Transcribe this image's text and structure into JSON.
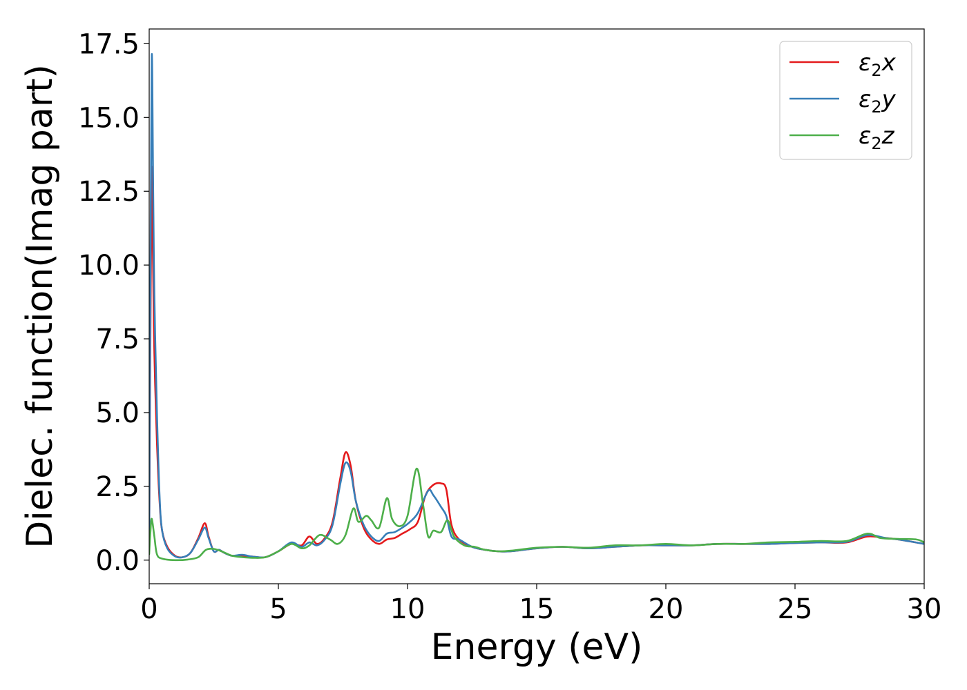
{
  "chart_data": {
    "type": "line",
    "title": "",
    "xlabel": "Energy (eV)",
    "ylabel": "Dielec. function(Imag part)",
    "xlim": [
      0,
      30
    ],
    "ylim": [
      -0.8,
      18.0
    ],
    "xticks": [
      0,
      5,
      10,
      15,
      20,
      25,
      30
    ],
    "xtick_labels": [
      "0",
      "5",
      "10",
      "15",
      "20",
      "25",
      "30"
    ],
    "yticks": [
      0.0,
      2.5,
      5.0,
      7.5,
      10.0,
      12.5,
      15.0,
      17.5
    ],
    "ytick_labels": [
      "0.0",
      "2.5",
      "5.0",
      "7.5",
      "10.0",
      "12.5",
      "15.0",
      "17.5"
    ],
    "grid": false,
    "legend_position": "top-right",
    "series": [
      {
        "name": "ε₂x",
        "legend_base": "ε",
        "legend_sub": "2",
        "legend_suffix": "x",
        "color": "#e41a1c",
        "points": [
          [
            0,
            0.3
          ],
          [
            0.05,
            8.0
          ],
          [
            0.1,
            13.3
          ],
          [
            0.15,
            10.0
          ],
          [
            0.2,
            7.0
          ],
          [
            0.3,
            4.0
          ],
          [
            0.4,
            2.0
          ],
          [
            0.5,
            1.0
          ],
          [
            0.7,
            0.45
          ],
          [
            1.0,
            0.15
          ],
          [
            1.3,
            0.1
          ],
          [
            1.6,
            0.25
          ],
          [
            1.9,
            0.75
          ],
          [
            2.15,
            1.25
          ],
          [
            2.3,
            0.8
          ],
          [
            2.5,
            0.3
          ],
          [
            2.7,
            0.35
          ],
          [
            2.9,
            0.25
          ],
          [
            3.2,
            0.15
          ],
          [
            3.6,
            0.15
          ],
          [
            4.0,
            0.12
          ],
          [
            4.5,
            0.1
          ],
          [
            5.0,
            0.3
          ],
          [
            5.5,
            0.55
          ],
          [
            5.9,
            0.5
          ],
          [
            6.2,
            0.8
          ],
          [
            6.5,
            0.55
          ],
          [
            6.8,
            0.75
          ],
          [
            7.1,
            1.3
          ],
          [
            7.4,
            2.8
          ],
          [
            7.6,
            3.65
          ],
          [
            7.8,
            3.2
          ],
          [
            8.0,
            2.0
          ],
          [
            8.3,
            1.1
          ],
          [
            8.6,
            0.7
          ],
          [
            8.9,
            0.55
          ],
          [
            9.2,
            0.7
          ],
          [
            9.5,
            0.75
          ],
          [
            9.8,
            0.9
          ],
          [
            10.1,
            1.05
          ],
          [
            10.4,
            1.3
          ],
          [
            10.7,
            2.2
          ],
          [
            11.0,
            2.55
          ],
          [
            11.3,
            2.6
          ],
          [
            11.5,
            2.4
          ],
          [
            11.7,
            1.2
          ],
          [
            12.0,
            0.7
          ],
          [
            12.5,
            0.45
          ],
          [
            13.0,
            0.35
          ],
          [
            13.5,
            0.3
          ],
          [
            14.0,
            0.3
          ],
          [
            15.0,
            0.4
          ],
          [
            16.0,
            0.45
          ],
          [
            17.0,
            0.4
          ],
          [
            18.0,
            0.45
          ],
          [
            19.0,
            0.5
          ],
          [
            20.0,
            0.5
          ],
          [
            21.0,
            0.5
          ],
          [
            22.0,
            0.55
          ],
          [
            23.0,
            0.55
          ],
          [
            24.0,
            0.55
          ],
          [
            25.0,
            0.58
          ],
          [
            26.0,
            0.6
          ],
          [
            27.0,
            0.6
          ],
          [
            27.8,
            0.8
          ],
          [
            28.5,
            0.75
          ],
          [
            29.0,
            0.7
          ],
          [
            30.0,
            0.55
          ]
        ]
      },
      {
        "name": "ε₂y",
        "legend_base": "ε",
        "legend_sub": "2",
        "legend_suffix": "y",
        "color": "#377eb8",
        "points": [
          [
            0,
            0.5
          ],
          [
            0.05,
            10.0
          ],
          [
            0.1,
            17.1
          ],
          [
            0.15,
            13.0
          ],
          [
            0.2,
            9.0
          ],
          [
            0.3,
            5.0
          ],
          [
            0.4,
            2.2
          ],
          [
            0.5,
            1.0
          ],
          [
            0.7,
            0.4
          ],
          [
            1.0,
            0.13
          ],
          [
            1.3,
            0.1
          ],
          [
            1.6,
            0.25
          ],
          [
            1.9,
            0.7
          ],
          [
            2.15,
            1.1
          ],
          [
            2.3,
            0.75
          ],
          [
            2.5,
            0.3
          ],
          [
            2.7,
            0.35
          ],
          [
            2.9,
            0.25
          ],
          [
            3.2,
            0.15
          ],
          [
            3.6,
            0.18
          ],
          [
            4.0,
            0.12
          ],
          [
            4.5,
            0.1
          ],
          [
            5.0,
            0.3
          ],
          [
            5.5,
            0.6
          ],
          [
            5.9,
            0.45
          ],
          [
            6.2,
            0.6
          ],
          [
            6.5,
            0.5
          ],
          [
            6.8,
            0.7
          ],
          [
            7.1,
            1.2
          ],
          [
            7.4,
            2.6
          ],
          [
            7.6,
            3.3
          ],
          [
            7.8,
            3.0
          ],
          [
            8.0,
            2.0
          ],
          [
            8.3,
            1.2
          ],
          [
            8.6,
            0.8
          ],
          [
            8.9,
            0.65
          ],
          [
            9.2,
            0.9
          ],
          [
            9.5,
            0.95
          ],
          [
            9.8,
            1.1
          ],
          [
            10.1,
            1.3
          ],
          [
            10.4,
            1.6
          ],
          [
            10.8,
            2.35
          ],
          [
            11.0,
            2.2
          ],
          [
            11.3,
            1.8
          ],
          [
            11.5,
            1.5
          ],
          [
            11.7,
            0.8
          ],
          [
            12.0,
            0.7
          ],
          [
            12.5,
            0.45
          ],
          [
            13.0,
            0.35
          ],
          [
            13.5,
            0.3
          ],
          [
            14.0,
            0.3
          ],
          [
            15.0,
            0.4
          ],
          [
            16.0,
            0.45
          ],
          [
            17.0,
            0.4
          ],
          [
            18.0,
            0.45
          ],
          [
            19.0,
            0.5
          ],
          [
            20.0,
            0.5
          ],
          [
            21.0,
            0.5
          ],
          [
            22.0,
            0.55
          ],
          [
            23.0,
            0.55
          ],
          [
            24.0,
            0.55
          ],
          [
            25.0,
            0.58
          ],
          [
            26.0,
            0.6
          ],
          [
            27.0,
            0.62
          ],
          [
            27.8,
            0.85
          ],
          [
            28.5,
            0.75
          ],
          [
            29.0,
            0.7
          ],
          [
            30.0,
            0.55
          ]
        ]
      },
      {
        "name": "ε₂z",
        "legend_base": "ε",
        "legend_sub": "2",
        "legend_suffix": "z",
        "color": "#4daf4a",
        "points": [
          [
            0,
            0.2
          ],
          [
            0.05,
            1.0
          ],
          [
            0.1,
            1.4
          ],
          [
            0.2,
            0.8
          ],
          [
            0.3,
            0.2
          ],
          [
            0.5,
            0.05
          ],
          [
            1.0,
            0.0
          ],
          [
            1.5,
            0.02
          ],
          [
            1.9,
            0.1
          ],
          [
            2.2,
            0.35
          ],
          [
            2.5,
            0.38
          ],
          [
            2.8,
            0.3
          ],
          [
            3.2,
            0.15
          ],
          [
            3.6,
            0.1
          ],
          [
            4.0,
            0.08
          ],
          [
            4.5,
            0.1
          ],
          [
            5.0,
            0.3
          ],
          [
            5.5,
            0.55
          ],
          [
            5.9,
            0.4
          ],
          [
            6.2,
            0.5
          ],
          [
            6.6,
            0.85
          ],
          [
            7.0,
            0.7
          ],
          [
            7.3,
            0.55
          ],
          [
            7.6,
            0.85
          ],
          [
            7.9,
            1.75
          ],
          [
            8.1,
            1.3
          ],
          [
            8.4,
            1.5
          ],
          [
            8.6,
            1.35
          ],
          [
            8.9,
            1.1
          ],
          [
            9.2,
            2.1
          ],
          [
            9.4,
            1.4
          ],
          [
            9.7,
            1.15
          ],
          [
            10.0,
            1.5
          ],
          [
            10.35,
            3.1
          ],
          [
            10.6,
            1.9
          ],
          [
            10.8,
            0.8
          ],
          [
            11.0,
            1.0
          ],
          [
            11.3,
            0.95
          ],
          [
            11.55,
            1.35
          ],
          [
            11.8,
            0.8
          ],
          [
            12.2,
            0.5
          ],
          [
            12.6,
            0.45
          ],
          [
            13.0,
            0.35
          ],
          [
            13.5,
            0.3
          ],
          [
            14.0,
            0.32
          ],
          [
            15.0,
            0.42
          ],
          [
            16.0,
            0.45
          ],
          [
            17.0,
            0.42
          ],
          [
            18.0,
            0.5
          ],
          [
            19.0,
            0.5
          ],
          [
            20.0,
            0.55
          ],
          [
            21.0,
            0.5
          ],
          [
            22.0,
            0.55
          ],
          [
            23.0,
            0.55
          ],
          [
            24.0,
            0.6
          ],
          [
            25.0,
            0.62
          ],
          [
            26.0,
            0.65
          ],
          [
            27.0,
            0.65
          ],
          [
            27.8,
            0.9
          ],
          [
            28.3,
            0.75
          ],
          [
            29.0,
            0.72
          ],
          [
            29.7,
            0.7
          ],
          [
            30.0,
            0.6
          ]
        ]
      }
    ]
  }
}
